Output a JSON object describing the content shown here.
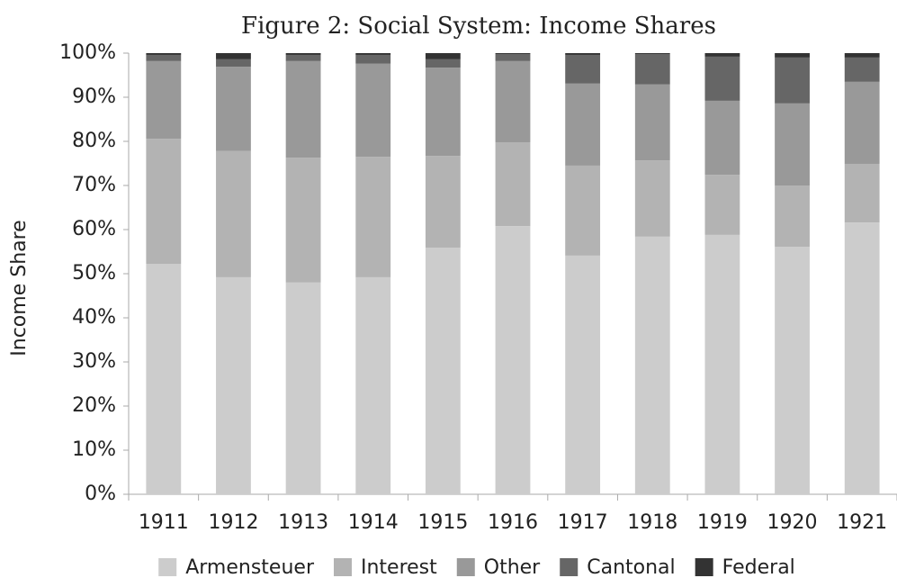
{
  "chart_data": {
    "type": "stacked_bar",
    "title": "Figure 2: Social System: Income Shares",
    "y_label": "Income Share",
    "categories": [
      "1911",
      "1912",
      "1913",
      "1914",
      "1915",
      "1916",
      "1917",
      "1918",
      "1919",
      "1920",
      "1921"
    ],
    "series": [
      {
        "name": "Armensteuer",
        "color": "#cccccc",
        "values": [
          52.2,
          49.2,
          48.0,
          49.2,
          55.9,
          60.8,
          54.1,
          58.4,
          58.8,
          56.1,
          61.6
        ]
      },
      {
        "name": "Interest",
        "color": "#b3b3b3",
        "values": [
          28.4,
          28.6,
          28.3,
          27.3,
          20.8,
          19.0,
          20.4,
          17.3,
          13.6,
          13.9,
          13.3
        ]
      },
      {
        "name": "Other",
        "color": "#999999",
        "values": [
          17.6,
          19.1,
          21.9,
          21.1,
          20.0,
          18.4,
          18.6,
          17.2,
          16.8,
          18.6,
          18.6
        ]
      },
      {
        "name": "Cantonal",
        "color": "#666666",
        "values": [
          1.4,
          1.7,
          1.4,
          2.0,
          1.9,
          1.6,
          6.5,
          6.9,
          10.0,
          10.4,
          5.5
        ]
      },
      {
        "name": "Federal",
        "color": "#333333",
        "values": [
          0.4,
          1.4,
          0.4,
          0.4,
          1.4,
          0.2,
          0.4,
          0.2,
          0.8,
          1.0,
          1.0
        ]
      }
    ],
    "ylim": [
      0,
      100
    ],
    "yticks": [
      {
        "value": 0,
        "label": "0%"
      },
      {
        "value": 10,
        "label": "10%"
      },
      {
        "value": 20,
        "label": "20%"
      },
      {
        "value": 30,
        "label": "30%"
      },
      {
        "value": 40,
        "label": "40%"
      },
      {
        "value": 50,
        "label": "50%"
      },
      {
        "value": 60,
        "label": "60%"
      },
      {
        "value": 70,
        "label": "70%"
      },
      {
        "value": 80,
        "label": "80%"
      },
      {
        "value": 90,
        "label": "90%"
      },
      {
        "value": 100,
        "label": "100%"
      }
    ],
    "grid": false,
    "legend": "bottom"
  }
}
